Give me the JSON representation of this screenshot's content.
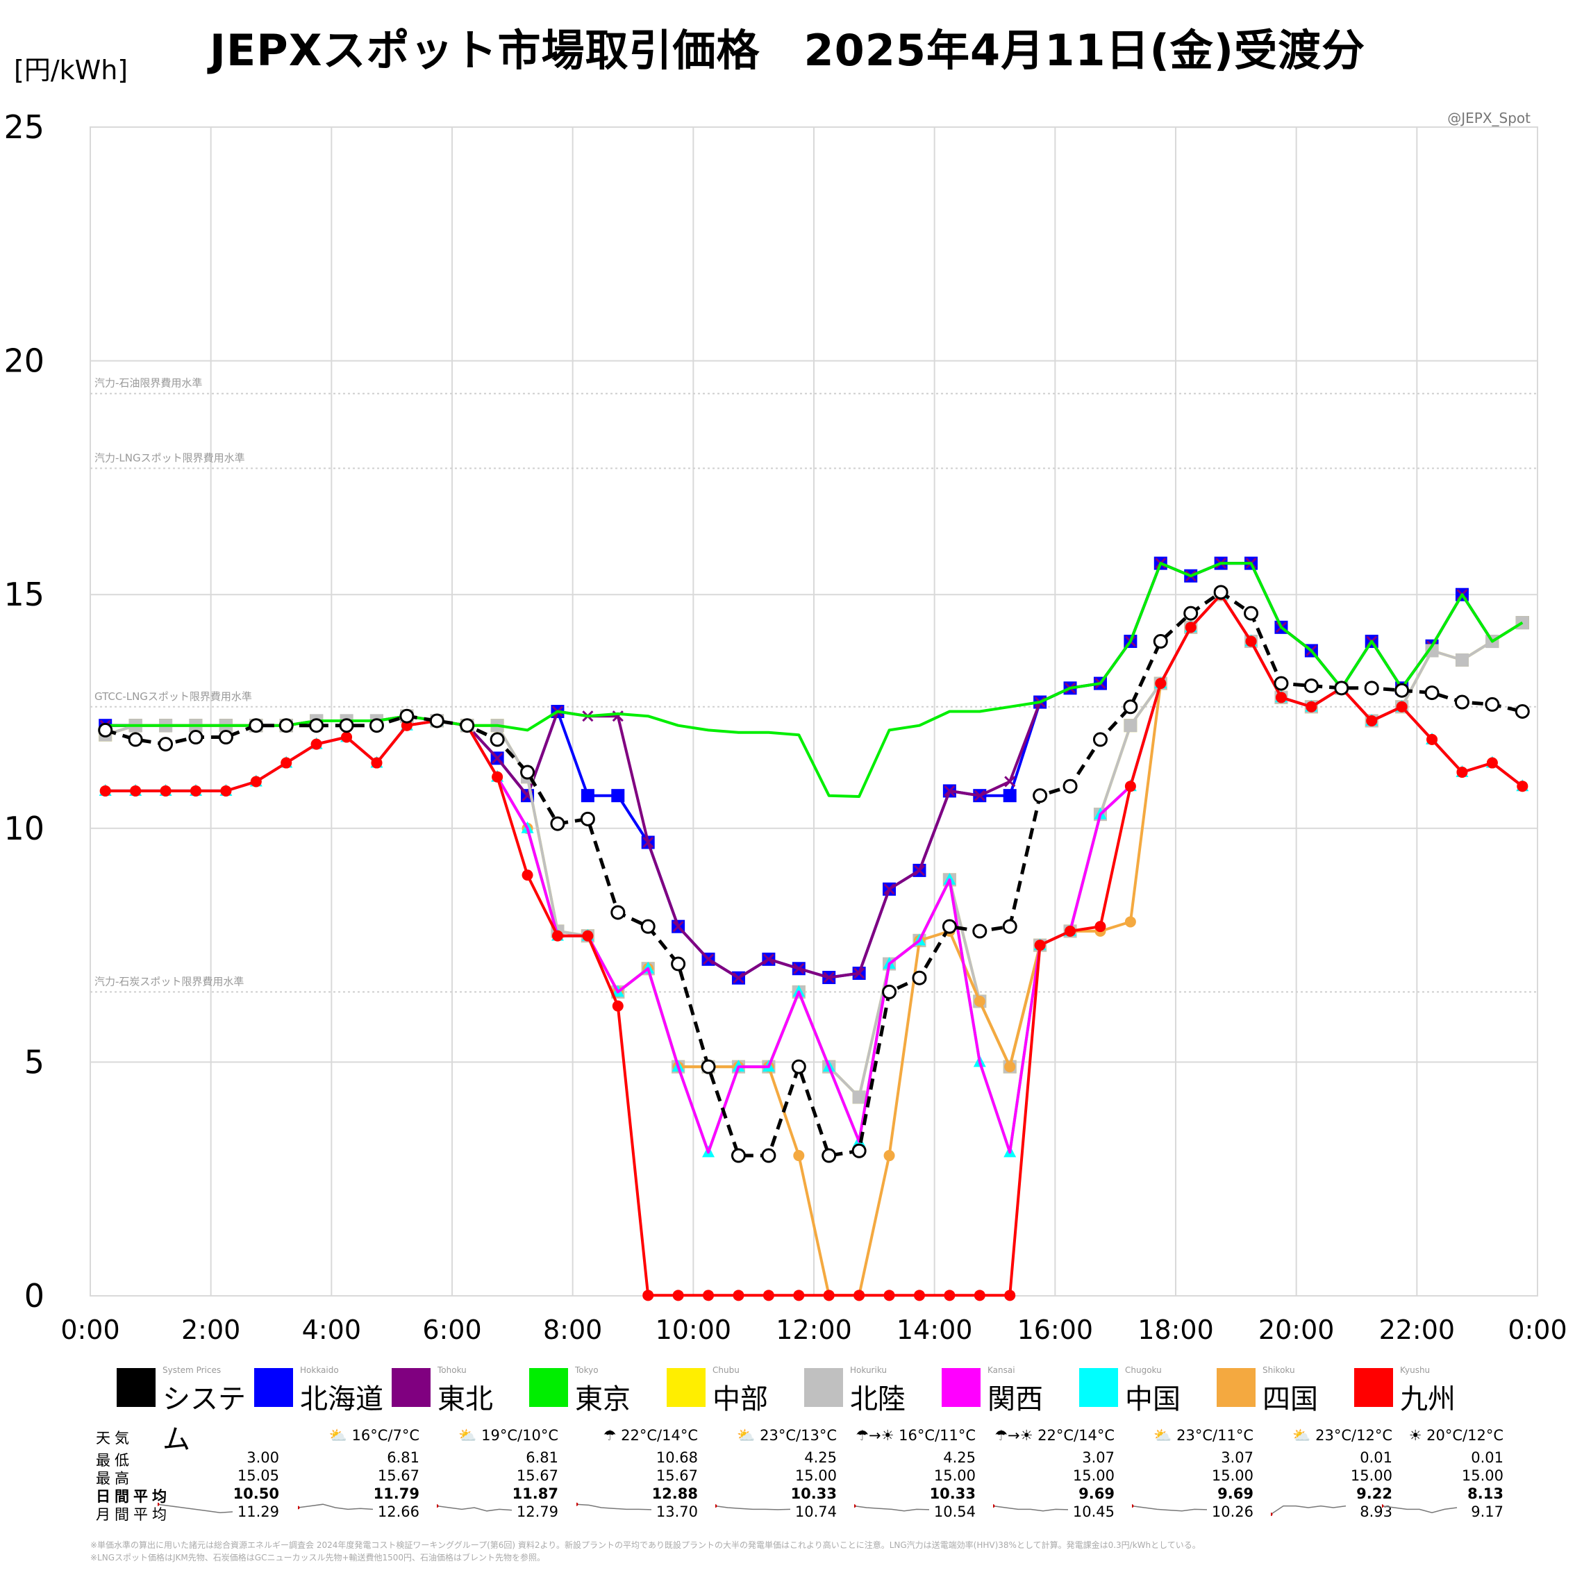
{
  "title": "JEPXスポット市場取引価格　2025年4月11日(金)受渡分",
  "unit_label": "[円/kWh]",
  "credit": "@JEPX_Spot",
  "chart_data": {
    "type": "line",
    "title": "JEPXスポット市場取引価格　2025年4月11日(金)受渡分",
    "ylabel": "[円/kWh]",
    "xlabel": "",
    "ylim": [
      0,
      25
    ],
    "y_ticks": [
      "0",
      "5",
      "10",
      "15",
      "20",
      "25"
    ],
    "x_ticks": [
      "0:00",
      "2:00",
      "4:00",
      "6:00",
      "8:00",
      "10:00",
      "12:00",
      "14:00",
      "16:00",
      "18:00",
      "20:00",
      "22:00",
      "0:00"
    ],
    "grid": true,
    "reference_lines": [
      {
        "label": "汽力-石油限界費用水準",
        "value": 19.3
      },
      {
        "label": "汽力-LNGスポット限界費用水準",
        "value": 17.7
      },
      {
        "label": "GTCC-LNGスポット限界費用水準",
        "value": 12.6
      },
      {
        "label": "汽力-石炭スポット限界費用水準",
        "value": 6.5
      }
    ],
    "x": [
      0.25,
      0.75,
      1.25,
      1.75,
      2.25,
      2.75,
      3.25,
      3.75,
      4.25,
      4.75,
      5.25,
      5.75,
      6.25,
      6.75,
      7.25,
      7.75,
      8.25,
      8.75,
      9.25,
      9.75,
      10.25,
      10.75,
      11.25,
      11.75,
      12.25,
      12.75,
      13.25,
      13.75,
      14.25,
      14.75,
      15.25,
      15.75,
      16.25,
      16.75,
      17.25,
      17.75,
      18.25,
      18.75,
      19.25,
      19.75,
      20.25,
      20.75,
      21.25,
      21.75,
      22.25,
      22.75,
      23.25,
      23.75
    ],
    "series": [
      {
        "key": "system",
        "name": "システム",
        "name_en": "System Prices",
        "color": "#000000",
        "style": "dashed",
        "marker": "circle-open",
        "values": [
          12.1,
          11.9,
          11.8,
          11.95,
          11.95,
          12.2,
          12.2,
          12.2,
          12.2,
          12.2,
          12.4,
          12.3,
          12.2,
          11.9,
          11.2,
          10.1,
          10.2,
          8.2,
          7.9,
          7.1,
          4.9,
          3.0,
          3.0,
          4.9,
          3.0,
          3.1,
          6.5,
          6.8,
          7.9,
          7.8,
          7.9,
          10.7,
          10.9,
          11.9,
          12.6,
          14.0,
          14.6,
          15.05,
          14.6,
          13.1,
          13.05,
          13.0,
          13.0,
          12.95,
          12.9,
          12.7,
          12.65,
          12.5
        ]
      },
      {
        "key": "hokkaido",
        "name": "北海道",
        "name_en": "Hokkaido",
        "color": "#0000ff",
        "style": "solid",
        "marker": "square",
        "values": [
          12.2,
          12.2,
          12.2,
          12.2,
          12.2,
          12.2,
          12.2,
          12.3,
          12.3,
          12.3,
          12.4,
          12.3,
          12.2,
          11.5,
          10.7,
          12.5,
          10.7,
          10.7,
          9.7,
          7.9,
          7.2,
          6.8,
          7.2,
          7.0,
          6.81,
          6.9,
          8.7,
          9.1,
          10.8,
          10.7,
          10.7,
          12.7,
          13.0,
          13.1,
          14.0,
          15.67,
          15.4,
          15.67,
          15.67,
          14.3,
          13.8,
          13.0,
          14.0,
          13.0,
          13.9,
          15.0,
          14.0,
          14.4
        ]
      },
      {
        "key": "tohoku",
        "name": "東北",
        "name_en": "Tohoku",
        "color": "#800080",
        "style": "solid",
        "marker": "x",
        "values": [
          12.2,
          12.2,
          12.2,
          12.2,
          12.2,
          12.2,
          12.2,
          12.3,
          12.3,
          12.3,
          12.4,
          12.3,
          12.2,
          11.5,
          10.7,
          12.5,
          12.4,
          12.4,
          9.7,
          7.9,
          7.2,
          6.8,
          7.2,
          7.0,
          6.81,
          6.9,
          8.7,
          9.1,
          10.8,
          10.7,
          11.0,
          12.7,
          13.0,
          13.1,
          14.0,
          15.67,
          15.4,
          15.67,
          15.67,
          14.3,
          13.8,
          13.0,
          14.0,
          13.0,
          13.9,
          15.0,
          14.0,
          14.4
        ]
      },
      {
        "key": "tokyo",
        "name": "東京",
        "name_en": "Tokyo",
        "color": "#00ee00",
        "style": "solid",
        "marker": "none",
        "values": [
          12.2,
          12.2,
          12.2,
          12.2,
          12.2,
          12.2,
          12.2,
          12.3,
          12.3,
          12.3,
          12.4,
          12.3,
          12.2,
          12.2,
          12.1,
          12.5,
          12.4,
          12.45,
          12.4,
          12.2,
          12.1,
          12.05,
          12.05,
          12.0,
          10.7,
          10.68,
          12.1,
          12.2,
          12.5,
          12.5,
          12.6,
          12.7,
          13.0,
          13.1,
          14.0,
          15.67,
          15.4,
          15.67,
          15.67,
          14.3,
          13.8,
          13.0,
          14.0,
          13.0,
          13.9,
          15.0,
          14.0,
          14.4
        ]
      },
      {
        "key": "chubu",
        "name": "中部",
        "name_en": "Chubu",
        "color": "#ffee00",
        "style": "solid",
        "marker": "square",
        "values": [
          12.0,
          12.2,
          12.2,
          12.2,
          12.2,
          12.2,
          12.2,
          12.3,
          12.3,
          12.3,
          12.4,
          12.3,
          12.2,
          12.2,
          11.1,
          7.8,
          7.7,
          6.5,
          7.0,
          4.9,
          4.9,
          4.9,
          4.9,
          6.5,
          4.9,
          4.25,
          7.1,
          7.6,
          8.9,
          6.3,
          4.9,
          7.5,
          7.8,
          10.3,
          12.2,
          13.1,
          14.3,
          15.0,
          14.0,
          12.8,
          12.6,
          13.0,
          12.3,
          12.6,
          13.8,
          13.6,
          14.0,
          14.4
        ]
      },
      {
        "key": "hokuriku",
        "name": "北陸",
        "name_en": "Hokuriku",
        "color": "#c0c0c0",
        "style": "solid",
        "marker": "square",
        "values": [
          12.0,
          12.2,
          12.2,
          12.2,
          12.2,
          12.2,
          12.2,
          12.3,
          12.3,
          12.3,
          12.4,
          12.3,
          12.2,
          12.2,
          11.1,
          7.8,
          7.7,
          6.5,
          7.0,
          4.9,
          4.9,
          4.9,
          4.9,
          6.5,
          4.9,
          4.25,
          7.1,
          7.6,
          8.9,
          6.3,
          4.9,
          7.5,
          7.8,
          10.3,
          12.2,
          13.1,
          14.3,
          15.0,
          14.0,
          12.8,
          12.6,
          13.0,
          12.3,
          12.6,
          13.8,
          13.6,
          14.0,
          14.4
        ]
      },
      {
        "key": "kansai",
        "name": "関西",
        "name_en": "Kansai",
        "color": "#ff00ff",
        "style": "solid",
        "marker": "none",
        "values": [
          10.8,
          10.8,
          10.8,
          10.8,
          10.8,
          11.0,
          11.4,
          11.8,
          11.95,
          11.4,
          12.2,
          12.3,
          12.2,
          11.1,
          10.0,
          7.7,
          7.7,
          6.5,
          7.0,
          4.9,
          3.07,
          4.9,
          4.9,
          6.5,
          4.9,
          3.3,
          7.1,
          7.6,
          8.9,
          5.0,
          3.07,
          7.5,
          7.8,
          10.3,
          10.9,
          13.1,
          14.3,
          15.0,
          14.0,
          12.8,
          12.6,
          13.0,
          12.3,
          12.6,
          11.9,
          11.2,
          11.4,
          10.9
        ]
      },
      {
        "key": "chugoku",
        "name": "中国",
        "name_en": "Chugoku",
        "color": "#00ffff",
        "style": "solid",
        "marker": "triangle",
        "values": [
          10.8,
          10.8,
          10.8,
          10.8,
          10.8,
          11.0,
          11.4,
          11.8,
          11.95,
          11.4,
          12.2,
          12.3,
          12.2,
          11.1,
          10.0,
          7.7,
          7.7,
          6.5,
          7.0,
          4.9,
          3.07,
          4.9,
          4.9,
          6.5,
          4.9,
          3.3,
          7.1,
          7.6,
          8.9,
          5.0,
          3.07,
          7.5,
          7.8,
          10.3,
          10.9,
          13.1,
          14.3,
          15.0,
          14.0,
          12.8,
          12.6,
          13.0,
          12.3,
          12.6,
          11.9,
          11.2,
          11.4,
          10.9
        ]
      },
      {
        "key": "shikoku",
        "name": "四国",
        "name_en": "Shikoku",
        "color": "#f4a940",
        "style": "solid",
        "marker": "circle",
        "values": [
          10.8,
          10.8,
          10.8,
          10.8,
          10.8,
          11.0,
          11.4,
          11.8,
          11.95,
          11.4,
          12.2,
          12.3,
          12.2,
          11.1,
          10.0,
          7.7,
          7.7,
          6.5,
          7.0,
          4.9,
          4.9,
          4.9,
          4.9,
          3.0,
          0.01,
          0.01,
          3.0,
          7.6,
          7.8,
          6.3,
          4.9,
          7.5,
          7.8,
          7.8,
          8.0,
          13.1,
          14.3,
          15.0,
          14.0,
          12.8,
          12.6,
          13.0,
          12.3,
          12.6,
          11.9,
          11.2,
          11.4,
          10.9
        ]
      },
      {
        "key": "kyushu",
        "name": "九州",
        "name_en": "Kyushu",
        "color": "#ff0000",
        "style": "solid",
        "marker": "circle",
        "values": [
          10.8,
          10.8,
          10.8,
          10.8,
          10.8,
          11.0,
          11.4,
          11.8,
          11.95,
          11.4,
          12.2,
          12.3,
          12.2,
          11.1,
          9.0,
          7.7,
          7.7,
          6.2,
          0.01,
          0.01,
          0.01,
          0.01,
          0.01,
          0.01,
          0.01,
          0.01,
          0.01,
          0.01,
          0.01,
          0.01,
          0.01,
          7.5,
          7.8,
          7.9,
          10.9,
          13.1,
          14.3,
          15.0,
          14.0,
          12.8,
          12.6,
          13.0,
          12.3,
          12.6,
          11.9,
          11.2,
          11.4,
          10.9
        ]
      }
    ]
  },
  "stats": {
    "row_labels": {
      "weather": "天気",
      "min": "最低",
      "max": "最高",
      "daily_avg": "日間平均",
      "monthly_avg": "月間平均"
    },
    "weather": [
      "",
      "⛅ 16°C/7°C",
      "⛅ 19°C/10°C",
      "☂ 22°C/14°C",
      "⛅ 23°C/13°C",
      "☂→☀ 16°C/11°C",
      "☂→☀ 22°C/14°C",
      "⛅ 23°C/11°C",
      "⛅ 23°C/12°C",
      "☀ 20°C/12°C"
    ],
    "min": [
      "3.00",
      "6.81",
      "6.81",
      "10.68",
      "4.25",
      "4.25",
      "3.07",
      "3.07",
      "0.01",
      "0.01"
    ],
    "max": [
      "15.05",
      "15.67",
      "15.67",
      "15.67",
      "15.00",
      "15.00",
      "15.00",
      "15.00",
      "15.00",
      "15.00"
    ],
    "daily_avg": [
      "10.50",
      "11.79",
      "11.87",
      "12.88",
      "10.33",
      "10.33",
      "9.69",
      "9.69",
      "9.22",
      "8.13"
    ],
    "monthly_avg": [
      "11.29",
      "12.66",
      "12.79",
      "13.70",
      "10.74",
      "10.54",
      "10.45",
      "10.26",
      "8.93",
      "9.17"
    ]
  },
  "notes": [
    "※単価水準の算出に用いた諸元は総合資源エネルギー調査会 2024年度発電コスト検証ワーキンググループ(第6回) 資料2より。新設プラントの平均であり既設プラントの大半の発電単価はこれより高いことに注意。LNG汽力は送電端効率(HHV)38%として計算。発電課金は0.3円/kWhとしている。",
    "※LNGスポット価格はJKM先物、石炭価格はGCニューカッスル先物+輸送費他1500円、石油価格はブレント先物を参照。"
  ]
}
